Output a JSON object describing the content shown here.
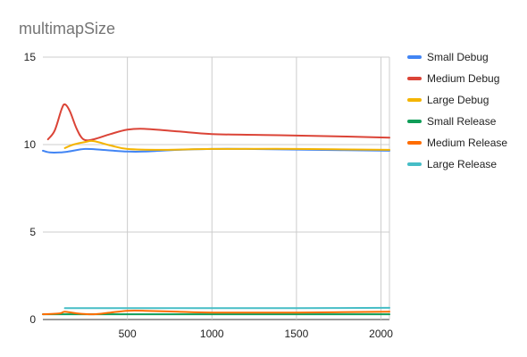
{
  "chart_data": {
    "type": "line",
    "title": "multimapSize",
    "xlabel": "",
    "ylabel": "",
    "xlim": [
      0,
      2050
    ],
    "ylim": [
      0,
      15
    ],
    "x_ticks": [
      500,
      1000,
      1500,
      2000
    ],
    "y_ticks": [
      0,
      5,
      10,
      15
    ],
    "grid": true,
    "legend_position": "right",
    "series": [
      {
        "name": "Small Debug",
        "color": "#4285F4",
        "points": [
          [
            0,
            9.65
          ],
          [
            40,
            9.55
          ],
          [
            100,
            9.55
          ],
          [
            150,
            9.6
          ],
          [
            250,
            9.75
          ],
          [
            350,
            9.7
          ],
          [
            500,
            9.6
          ],
          [
            600,
            9.6
          ],
          [
            800,
            9.7
          ],
          [
            1000,
            9.75
          ],
          [
            1200,
            9.75
          ],
          [
            1600,
            9.7
          ],
          [
            2050,
            9.65
          ]
        ]
      },
      {
        "name": "Medium Debug",
        "color": "#DB4437",
        "points": [
          [
            30,
            10.3
          ],
          [
            70,
            10.8
          ],
          [
            110,
            12.0
          ],
          [
            130,
            12.3
          ],
          [
            160,
            11.9
          ],
          [
            200,
            10.9
          ],
          [
            240,
            10.3
          ],
          [
            300,
            10.3
          ],
          [
            400,
            10.6
          ],
          [
            500,
            10.85
          ],
          [
            600,
            10.9
          ],
          [
            800,
            10.75
          ],
          [
            1000,
            10.6
          ],
          [
            1300,
            10.55
          ],
          [
            1600,
            10.5
          ],
          [
            2050,
            10.4
          ]
        ]
      },
      {
        "name": "Large Debug",
        "color": "#F4B400",
        "points": [
          [
            130,
            9.8
          ],
          [
            180,
            10.0
          ],
          [
            250,
            10.15
          ],
          [
            300,
            10.2
          ],
          [
            400,
            9.95
          ],
          [
            500,
            9.75
          ],
          [
            700,
            9.7
          ],
          [
            1000,
            9.75
          ],
          [
            1500,
            9.75
          ],
          [
            2050,
            9.7
          ]
        ]
      },
      {
        "name": "Small Release",
        "color": "#0F9D58",
        "points": [
          [
            0,
            0.3
          ],
          [
            500,
            0.3
          ],
          [
            1000,
            0.3
          ],
          [
            1500,
            0.3
          ],
          [
            2050,
            0.3
          ]
        ]
      },
      {
        "name": "Medium Release",
        "color": "#FF6D00",
        "points": [
          [
            0,
            0.3
          ],
          [
            100,
            0.35
          ],
          [
            130,
            0.45
          ],
          [
            200,
            0.35
          ],
          [
            300,
            0.3
          ],
          [
            400,
            0.4
          ],
          [
            500,
            0.5
          ],
          [
            600,
            0.5
          ],
          [
            800,
            0.45
          ],
          [
            1000,
            0.4
          ],
          [
            1500,
            0.4
          ],
          [
            2050,
            0.45
          ]
        ]
      },
      {
        "name": "Large Release",
        "color": "#46BDC6",
        "points": [
          [
            130,
            0.65
          ],
          [
            300,
            0.65
          ],
          [
            600,
            0.65
          ],
          [
            1000,
            0.65
          ],
          [
            1500,
            0.65
          ],
          [
            2050,
            0.67
          ]
        ]
      }
    ]
  }
}
